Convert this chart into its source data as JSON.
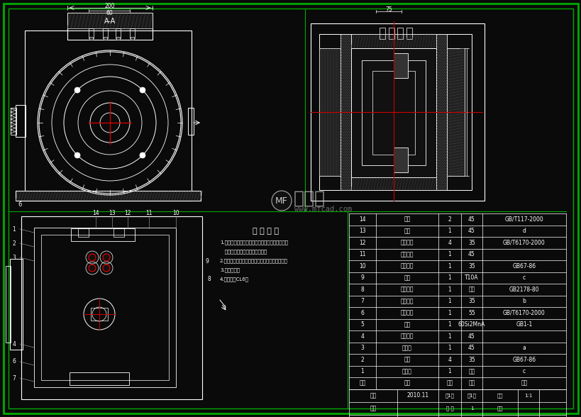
{
  "bg_color": "#0a0a0a",
  "line_color": "#ffffff",
  "red_color": "#cc0000",
  "green_color": "#00aa00",
  "watermark_text": "沐风网",
  "watermark_url": "www.mfcad.com",
  "tech_req_title": "技 术 要 求",
  "tech_req_lines": [
    "1.装配前零件与其他部件不加工面应涂油漆干净，",
    "   除去毛刺污垢，并涂油滑油廿；",
    "2.零件在装配时用模油滑油，涂干层表面涂油漆；",
    "3.先涂底漆；",
    "4.先涂底漆CL6。"
  ],
  "bom_rows": [
    [
      "14",
      "颗钉",
      "2",
      "45",
      "GB/T117-2000"
    ],
    [
      "13",
      "钳键",
      "1",
      "45",
      "d"
    ],
    [
      "12",
      "活接尾坐",
      "4",
      "35",
      "GB/T6170-2000"
    ],
    [
      "11",
      "加工头件",
      "1",
      "45",
      ""
    ],
    [
      "10",
      "防松螺钉",
      "1",
      "35",
      "GB67-86"
    ],
    [
      "9",
      "巺杉",
      "1",
      "T10A",
      "c"
    ],
    [
      "8",
      "零件压板",
      "1",
      "钉蒙",
      "GB2178-80"
    ],
    [
      "7",
      "定位元件",
      "1",
      "35",
      "b"
    ],
    [
      "6",
      "压紧弹子",
      "1",
      "55",
      "GB/T6170-2000"
    ],
    [
      "5",
      "弹簧",
      "1",
      "60Si2MnA",
      "GB1-1"
    ],
    [
      "4",
      "弹簧压座",
      "1",
      "45",
      ""
    ],
    [
      "3",
      "弹簧钉",
      "1",
      "45",
      "a"
    ],
    [
      "2",
      "负丁",
      "4",
      "35",
      "GB67-86"
    ],
    [
      "1",
      "元日座",
      "1",
      "钉蒙",
      "c"
    ],
    [
      "床号",
      "名称",
      "数量",
      "材料",
      "备注"
    ]
  ],
  "title_block": {
    "drawn_by": "制图",
    "date": "2010.11",
    "checked_by": "审核",
    "sheet": "1",
    "scale": "1:1"
  }
}
